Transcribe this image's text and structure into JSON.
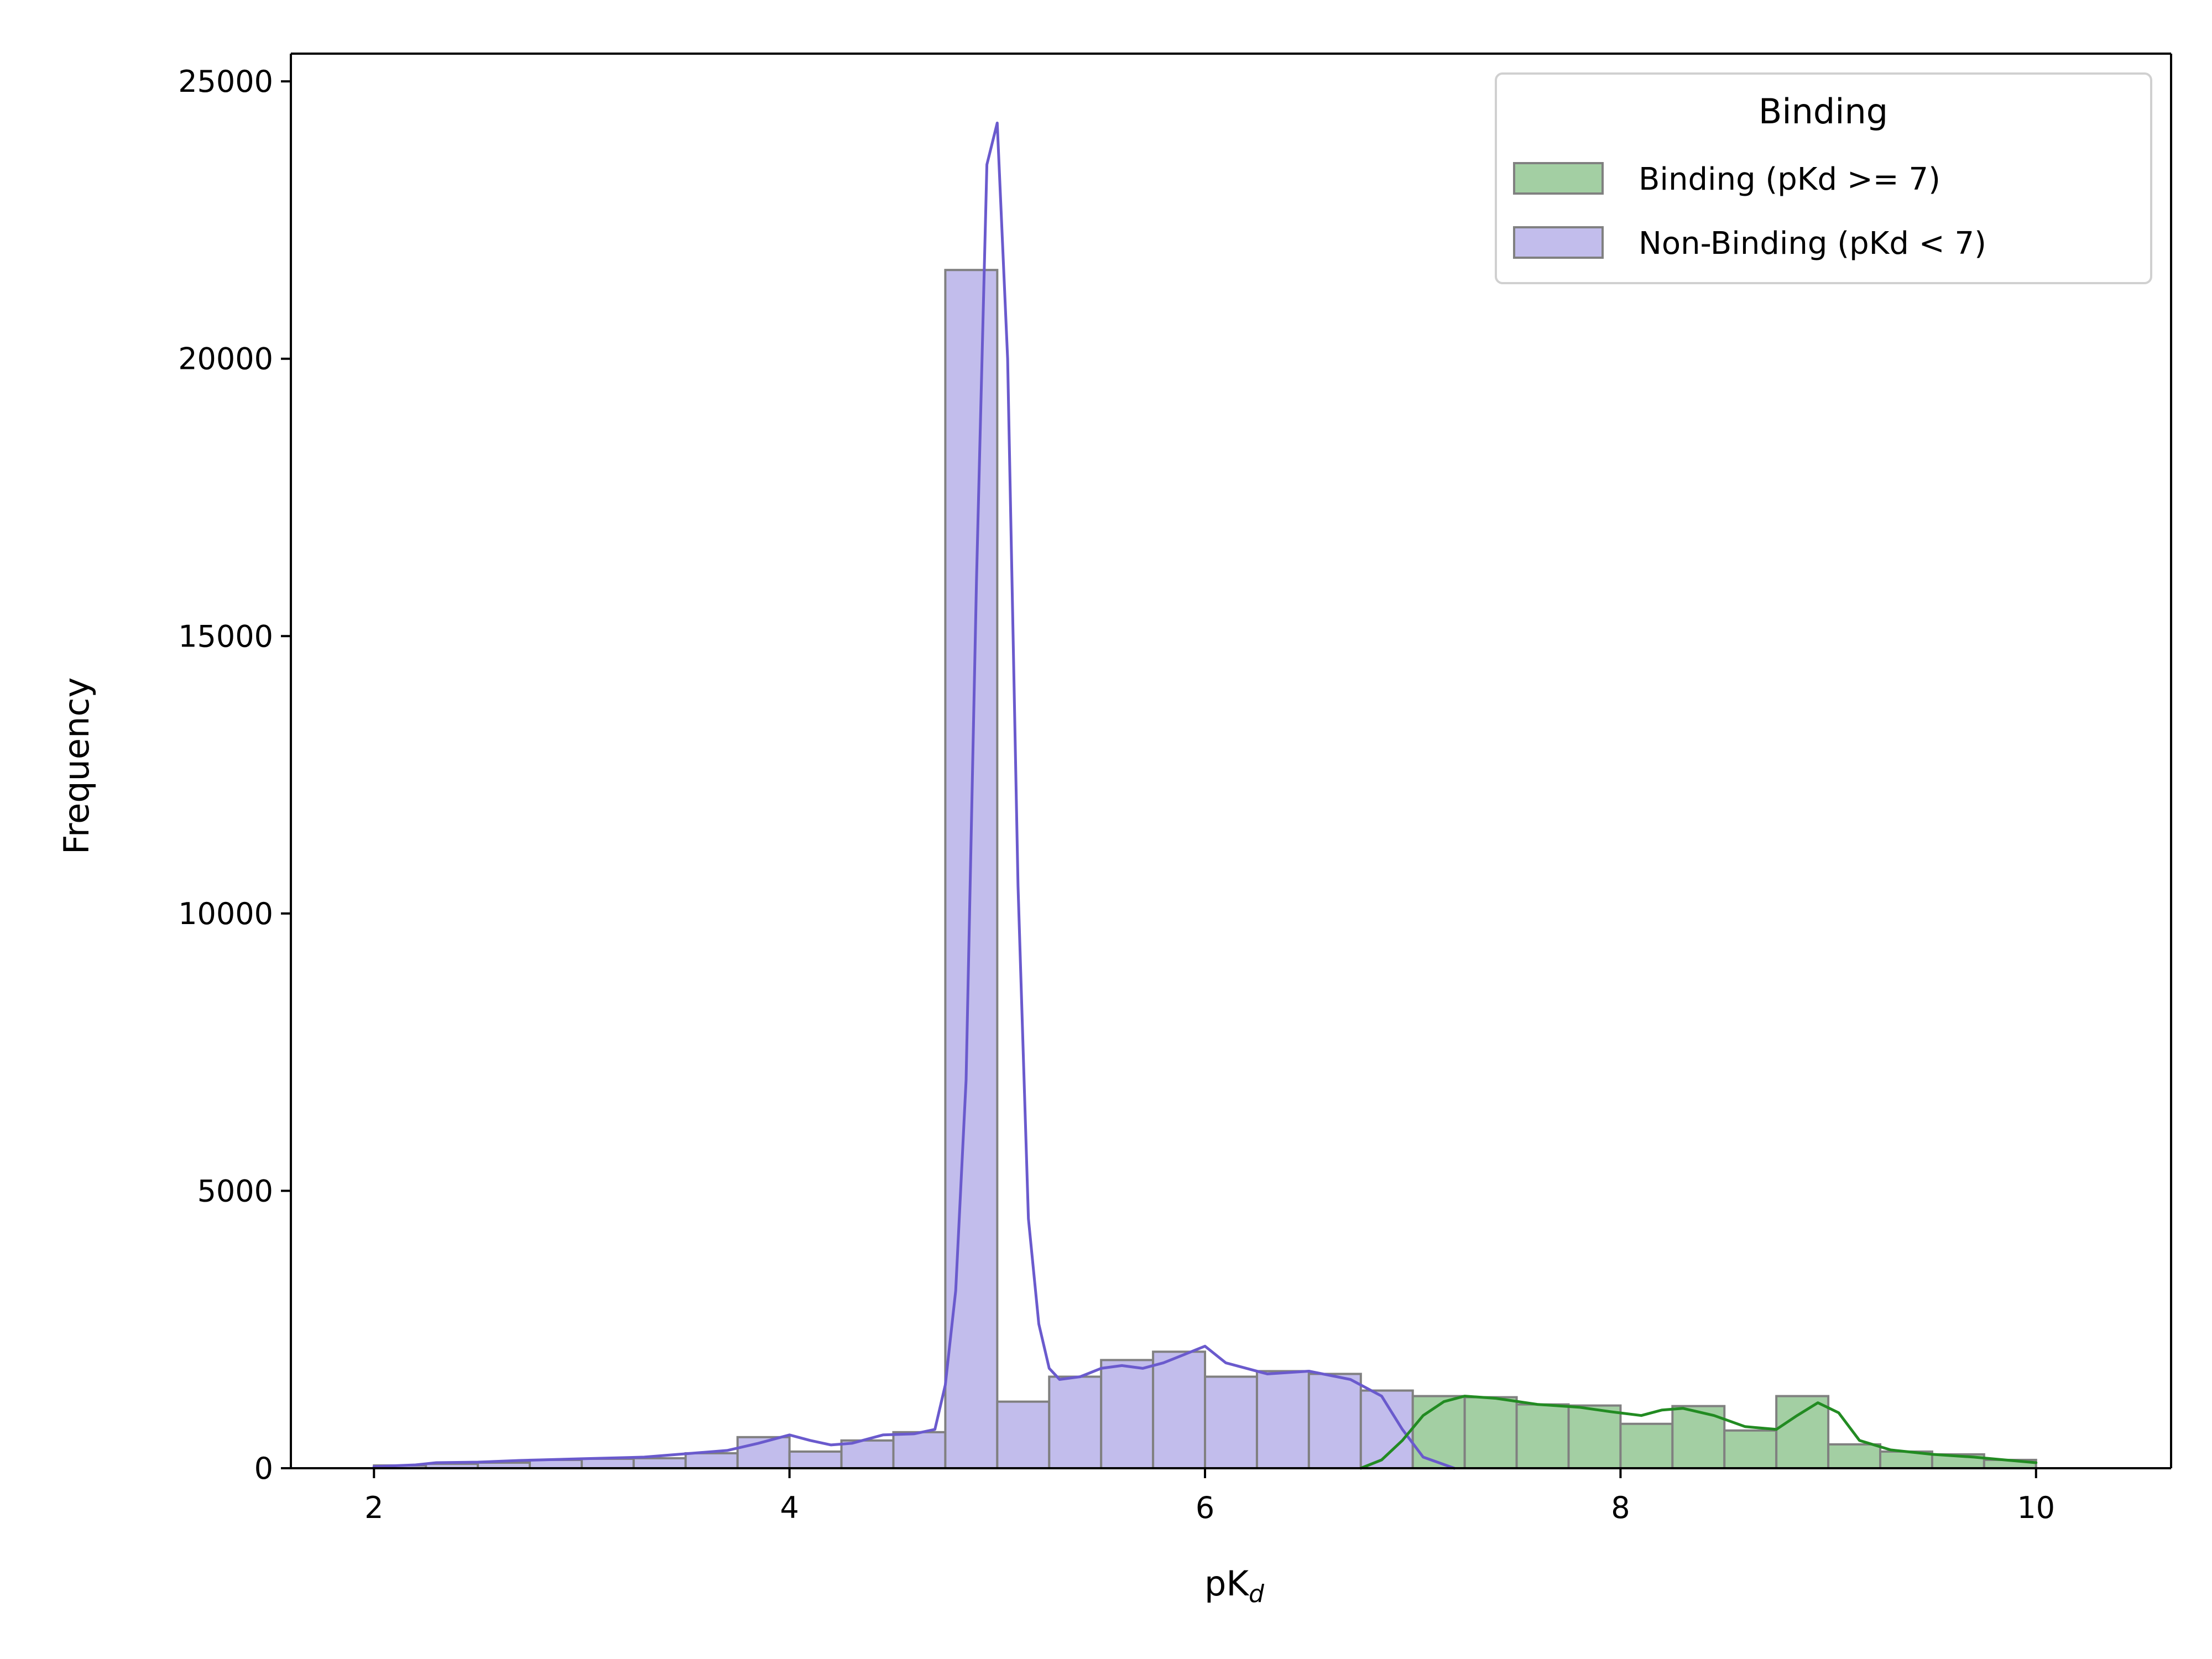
{
  "chart_data": {
    "type": "bar",
    "xlabel": "pK",
    "xlabel_subscript": "d",
    "ylabel": "Frequency",
    "xlim": [
      1.6,
      10.65
    ],
    "ylim": [
      0,
      25500
    ],
    "xticks": [
      2,
      4,
      6,
      8,
      10
    ],
    "yticks": [
      0,
      5000,
      10000,
      15000,
      20000,
      25000
    ],
    "grid": false,
    "legend": {
      "title": "Binding",
      "placement": "top-right",
      "entries": [
        {
          "label": "Binding (pKd >= 7)",
          "color": "#a3cfa3"
        },
        {
          "label": "Non-Binding (pKd < 7)",
          "color": "#c2bdec"
        }
      ]
    },
    "bin_width": 0.25,
    "series": [
      {
        "name": "Non-Binding (pKd < 7)",
        "fill_color": "#c2bdec",
        "line_color": "#6a5acd",
        "bin_starts": [
          2.0,
          2.25,
          2.5,
          2.75,
          3.0,
          3.25,
          3.5,
          3.75,
          4.0,
          4.25,
          4.5,
          4.75,
          5.0,
          5.25,
          5.5,
          5.75,
          6.0,
          6.25,
          6.5,
          6.75
        ],
        "values": [
          50,
          80,
          100,
          150,
          170,
          180,
          270,
          560,
          300,
          500,
          650,
          21600,
          1200,
          1650,
          1950,
          2100,
          1650,
          1750,
          1700,
          1400
        ],
        "kde": {
          "x": [
            2.0,
            2.2,
            2.3,
            2.5,
            2.7,
            3.0,
            3.3,
            3.5,
            3.7,
            3.85,
            4.0,
            4.1,
            4.2,
            4.3,
            4.45,
            4.6,
            4.7,
            4.75,
            4.8,
            4.85,
            4.9,
            4.95,
            5.0,
            5.05,
            5.1,
            5.15,
            5.2,
            5.25,
            5.3,
            5.4,
            5.5,
            5.6,
            5.7,
            5.8,
            5.9,
            6.0,
            6.1,
            6.3,
            6.5,
            6.7,
            6.85,
            6.95,
            7.05,
            7.2
          ],
          "y": [
            30,
            60,
            100,
            110,
            140,
            170,
            200,
            260,
            320,
            450,
            600,
            500,
            420,
            450,
            600,
            620,
            700,
            1500,
            3200,
            7000,
            16000,
            23500,
            24250,
            20000,
            10500,
            4500,
            2600,
            1800,
            1600,
            1650,
            1800,
            1850,
            1800,
            1900,
            2050,
            2200,
            1900,
            1700,
            1750,
            1600,
            1300,
            700,
            200,
            0
          ]
        }
      },
      {
        "name": "Binding (pKd >= 7)",
        "fill_color": "#a3cfa3",
        "line_color": "#228b22",
        "bin_starts": [
          7.0,
          7.25,
          7.5,
          7.75,
          8.0,
          8.25,
          8.5,
          8.75,
          9.0,
          9.25,
          9.5,
          9.75
        ],
        "values": [
          1300,
          1280,
          1150,
          1130,
          800,
          1120,
          680,
          1300,
          430,
          300,
          250,
          150
        ],
        "kde": {
          "x": [
            6.75,
            6.85,
            6.95,
            7.05,
            7.15,
            7.25,
            7.4,
            7.6,
            7.8,
            7.95,
            8.1,
            8.2,
            8.3,
            8.45,
            8.6,
            8.75,
            8.85,
            8.95,
            9.05,
            9.15,
            9.3,
            9.5,
            9.7,
            9.85,
            10.0
          ],
          "y": [
            0,
            150,
            500,
            950,
            1200,
            1300,
            1260,
            1150,
            1100,
            1020,
            950,
            1050,
            1080,
            950,
            750,
            700,
            950,
            1180,
            1000,
            500,
            330,
            250,
            200,
            150,
            100
          ]
        }
      }
    ]
  }
}
